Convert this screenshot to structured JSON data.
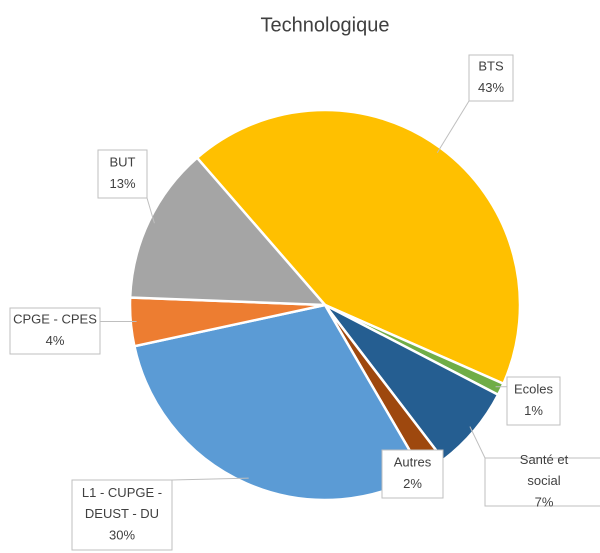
{
  "chart_data": {
    "type": "pie",
    "title": "Technologique",
    "categories": [
      "BTS",
      "Ecoles",
      "Santé et social",
      "Autres",
      "L1 - CUPGE - DEUST - DU",
      "CPGE - CPES",
      "BUT"
    ],
    "values": [
      43,
      1,
      7,
      2,
      30,
      4,
      13
    ],
    "value_labels": [
      "43%",
      "1%",
      "7%",
      "2%",
      "30%",
      "4%",
      "13%"
    ],
    "colors": [
      "#FFC000",
      "#70AD47",
      "#255E91",
      "#9E480E",
      "#5B9BD5",
      "#ED7D31",
      "#A5A5A5"
    ]
  }
}
